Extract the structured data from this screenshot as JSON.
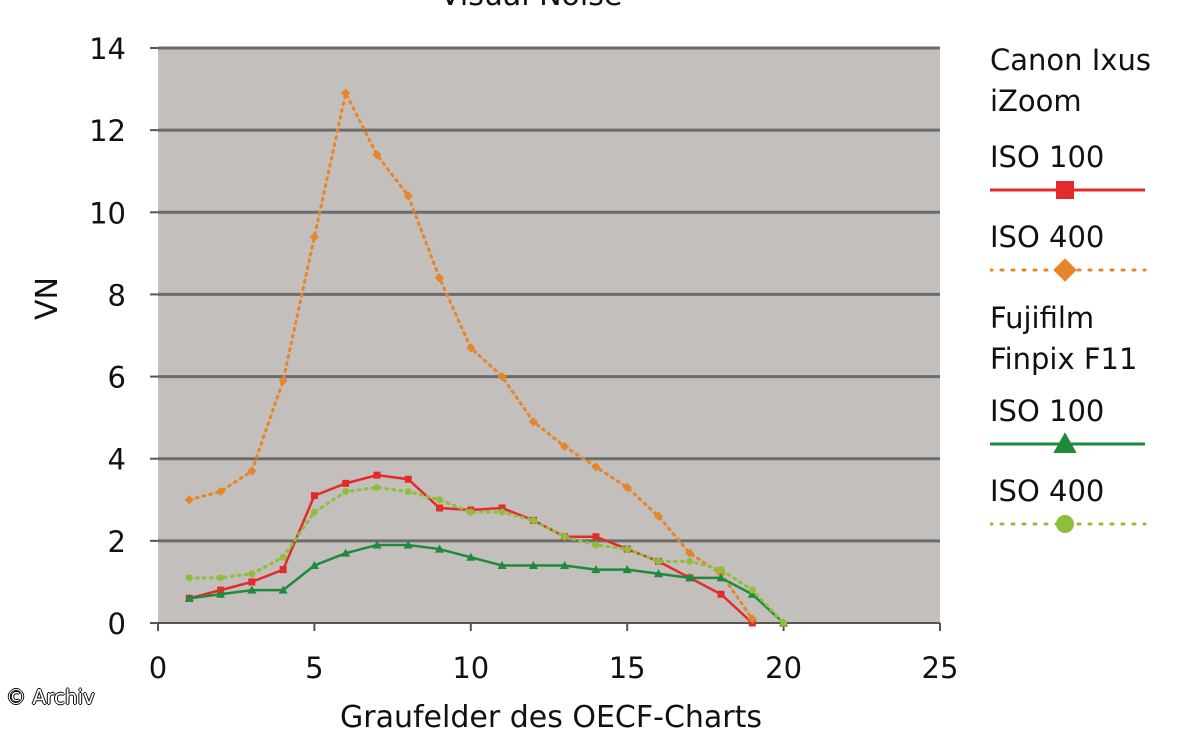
{
  "chart_data": {
    "type": "line",
    "title": "Visual Noise",
    "xlabel": "Graufelder des OECF-Charts",
    "ylabel": "VN",
    "xlim": [
      0,
      25
    ],
    "ylim": [
      0,
      14
    ],
    "x_ticks": [
      0,
      5,
      10,
      15,
      20,
      25
    ],
    "y_ticks": [
      0,
      2,
      4,
      6,
      8,
      10,
      12,
      14
    ],
    "grid": true,
    "legend_position": "right",
    "legend_groups": [
      {
        "label": "Canon Ixus iZoom",
        "series_indices": [
          0,
          1
        ]
      },
      {
        "label": "Fujifilm Finpix F11",
        "series_indices": [
          2,
          3
        ]
      }
    ],
    "series": [
      {
        "name": "ISO 100",
        "color": "#e32b2b",
        "line": "solid",
        "marker": "square",
        "x": [
          1,
          2,
          3,
          4,
          5,
          6,
          7,
          8,
          9,
          10,
          11,
          12,
          13,
          14,
          15,
          16,
          17,
          18,
          19
        ],
        "y": [
          0.6,
          0.8,
          1.0,
          1.3,
          3.1,
          3.4,
          3.6,
          3.5,
          2.8,
          2.75,
          2.8,
          2.5,
          2.1,
          2.1,
          1.8,
          1.5,
          1.1,
          0.7,
          0.0
        ]
      },
      {
        "name": "ISO 400",
        "color": "#e8852a",
        "line": "dotted",
        "marker": "diamond",
        "x": [
          1,
          2,
          3,
          4,
          5,
          6,
          7,
          8,
          9,
          10,
          11,
          12,
          13,
          14,
          15,
          16,
          17,
          18,
          19
        ],
        "y": [
          3.0,
          3.2,
          3.7,
          5.9,
          9.4,
          12.9,
          11.4,
          10.4,
          8.4,
          6.7,
          6.0,
          4.9,
          4.3,
          3.8,
          3.3,
          2.6,
          1.7,
          1.2,
          0.1
        ]
      },
      {
        "name": "ISO 100",
        "color": "#1f8a3c",
        "line": "solid",
        "marker": "triangle",
        "x": [
          1,
          2,
          3,
          4,
          5,
          6,
          7,
          8,
          9,
          10,
          11,
          12,
          13,
          14,
          15,
          16,
          17,
          18,
          19,
          20
        ],
        "y": [
          0.6,
          0.7,
          0.8,
          0.8,
          1.4,
          1.7,
          1.9,
          1.9,
          1.8,
          1.6,
          1.4,
          1.4,
          1.4,
          1.3,
          1.3,
          1.2,
          1.1,
          1.1,
          0.7,
          0.0
        ]
      },
      {
        "name": "ISO 400",
        "color": "#8fbf3a",
        "line": "dotted",
        "marker": "circle",
        "x": [
          1,
          2,
          3,
          4,
          5,
          6,
          7,
          8,
          9,
          10,
          11,
          12,
          13,
          14,
          15,
          16,
          17,
          18,
          19,
          20
        ],
        "y": [
          1.1,
          1.1,
          1.2,
          1.6,
          2.7,
          3.2,
          3.3,
          3.2,
          3.0,
          2.7,
          2.7,
          2.5,
          2.1,
          1.9,
          1.8,
          1.5,
          1.5,
          1.3,
          0.8,
          0.0
        ]
      }
    ]
  },
  "credit": "© Archiv"
}
